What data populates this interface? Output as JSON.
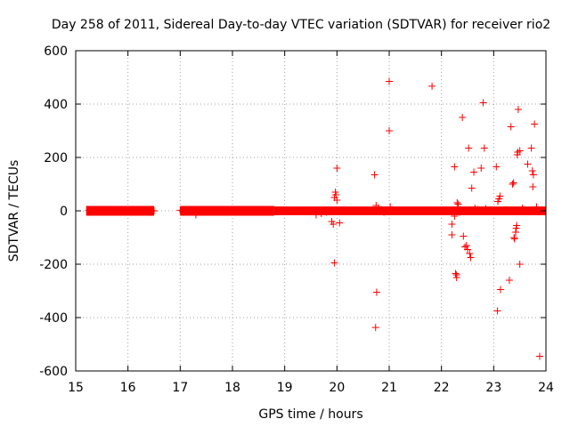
{
  "chart_data": {
    "type": "scatter",
    "title": "Day 258 of 2011, Sidereal Day-to-day VTEC variation (SDTVAR) for receiver rio2",
    "xlabel": "GPS time / hours",
    "ylabel": "SDTVAR / TECUs",
    "xlim": [
      15,
      24
    ],
    "ylim": [
      -600,
      600
    ],
    "xticks": [
      15,
      16,
      17,
      18,
      19,
      20,
      21,
      22,
      23,
      24
    ],
    "yticks": [
      -600,
      -400,
      -200,
      0,
      200,
      400,
      600
    ],
    "xtick_labels": [
      "15",
      "16",
      "17",
      "18",
      "19",
      "20",
      "21",
      "22",
      "23",
      "24"
    ],
    "ytick_labels": [
      "-600",
      "-400",
      "-200",
      "0",
      "200",
      "400",
      "600"
    ],
    "grid": true,
    "marker": "+",
    "color": "#ff0000",
    "dense_bands": [
      {
        "x_start": 15.2,
        "x_end": 16.5,
        "y_low": -5,
        "y_high": 5
      },
      {
        "x_start": 17.0,
        "x_end": 18.8,
        "y_low": -5,
        "y_high": 5
      },
      {
        "x_start": 18.8,
        "x_end": 24.0,
        "y_low": -3,
        "y_high": 3
      }
    ],
    "points": [
      [
        15.25,
        2
      ],
      [
        15.3,
        -3
      ],
      [
        16.45,
        2
      ],
      [
        16.5,
        0
      ],
      [
        17.0,
        2
      ],
      [
        17.05,
        -3
      ],
      [
        17.1,
        5
      ],
      [
        17.15,
        0
      ],
      [
        17.2,
        5
      ],
      [
        17.3,
        -15
      ],
      [
        17.5,
        -5
      ],
      [
        19.6,
        -15
      ],
      [
        19.7,
        -10
      ],
      [
        19.8,
        -5
      ],
      [
        19.9,
        -40
      ],
      [
        19.93,
        -50
      ],
      [
        19.95,
        50
      ],
      [
        19.97,
        70
      ],
      [
        19.98,
        60
      ],
      [
        20.0,
        40
      ],
      [
        19.95,
        -195
      ],
      [
        20.0,
        160
      ],
      [
        20.05,
        -45
      ],
      [
        20.72,
        135
      ],
      [
        20.75,
        20
      ],
      [
        20.76,
        -305
      ],
      [
        20.74,
        -437
      ],
      [
        20.8,
        10
      ],
      [
        20.85,
        5
      ],
      [
        20.9,
        -5
      ],
      [
        21.0,
        485
      ],
      [
        21.0,
        300
      ],
      [
        21.02,
        15
      ],
      [
        21.82,
        467
      ],
      [
        22.2,
        -50
      ],
      [
        22.25,
        165
      ],
      [
        22.27,
        -235
      ],
      [
        22.29,
        -240
      ],
      [
        22.29,
        -250
      ],
      [
        22.3,
        30
      ],
      [
        22.32,
        25
      ],
      [
        22.2,
        -90
      ],
      [
        22.25,
        -20
      ],
      [
        22.35,
        -5
      ],
      [
        22.4,
        350
      ],
      [
        22.42,
        -95
      ],
      [
        22.45,
        -135
      ],
      [
        22.48,
        -130
      ],
      [
        22.5,
        -145
      ],
      [
        22.52,
        235
      ],
      [
        22.54,
        -160
      ],
      [
        22.56,
        -175
      ],
      [
        22.58,
        85
      ],
      [
        22.62,
        145
      ],
      [
        22.64,
        10
      ],
      [
        22.7,
        5
      ],
      [
        22.76,
        160
      ],
      [
        22.8,
        405
      ],
      [
        22.82,
        235
      ],
      [
        22.85,
        8
      ],
      [
        23.05,
        165
      ],
      [
        23.07,
        -375
      ],
      [
        23.08,
        35
      ],
      [
        23.1,
        45
      ],
      [
        23.12,
        55
      ],
      [
        23.13,
        -295
      ],
      [
        23.3,
        -260
      ],
      [
        23.33,
        315
      ],
      [
        23.36,
        100
      ],
      [
        23.38,
        105
      ],
      [
        23.39,
        -100
      ],
      [
        23.4,
        -105
      ],
      [
        23.42,
        -80
      ],
      [
        23.43,
        -65
      ],
      [
        23.44,
        -55
      ],
      [
        23.45,
        210
      ],
      [
        23.46,
        220
      ],
      [
        23.47,
        380
      ],
      [
        23.5,
        -200
      ],
      [
        23.5,
        225
      ],
      [
        23.55,
        10
      ],
      [
        23.65,
        175
      ],
      [
        23.72,
        235
      ],
      [
        23.74,
        150
      ],
      [
        23.75,
        90
      ],
      [
        23.76,
        135
      ],
      [
        23.78,
        325
      ],
      [
        23.82,
        15
      ],
      [
        23.88,
        -545
      ]
    ]
  }
}
